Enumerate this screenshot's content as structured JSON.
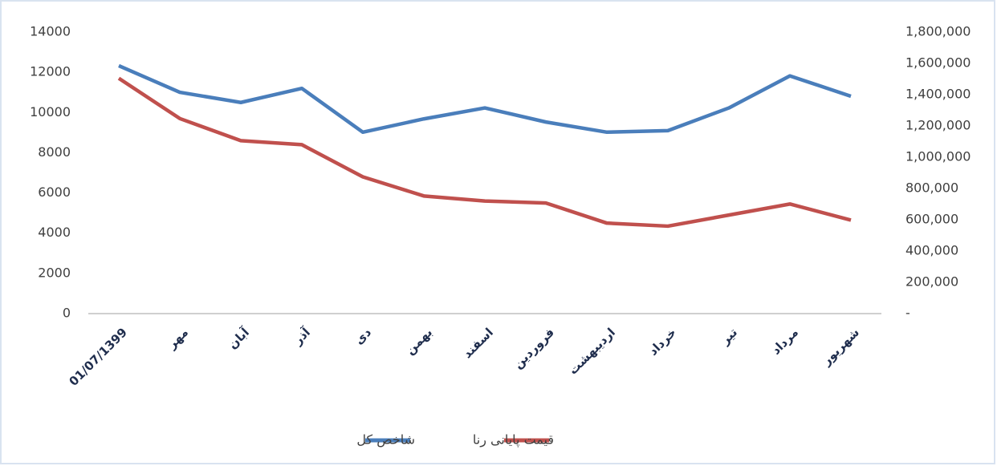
{
  "chart_data": {
    "type": "line",
    "categories": [
      "01/07/1399",
      "مهر",
      "آبان",
      "آذر",
      "دی",
      "بهمن",
      "اسفند",
      "فروردین",
      "اردیبهشت",
      "خرداد",
      "تیر",
      "مرداد",
      "شهریور"
    ],
    "series": [
      {
        "name": "شاخص کل",
        "color": "#4a7ebb",
        "axis": "y2",
        "values": [
          1585000,
          1415000,
          1350000,
          1440000,
          1160000,
          1245000,
          1315000,
          1225000,
          1160000,
          1170000,
          1315000,
          1520000,
          1390000
        ]
      },
      {
        "name": "قیمت پایانی رنا",
        "color": "#c0504d",
        "axis": "y",
        "values": [
          11700,
          9700,
          8600,
          8400,
          6800,
          5850,
          5600,
          5500,
          4500,
          4350,
          4900,
          5450,
          4650
        ]
      }
    ],
    "ylim": [
      0,
      14000
    ],
    "yticks": [
      0,
      2000,
      4000,
      6000,
      8000,
      10000,
      12000,
      14000
    ],
    "y2lim": [
      0,
      1800000
    ],
    "y2ticks": [
      {
        "value": 0,
        "label": "-"
      },
      {
        "value": 200000,
        "label": "200,000"
      },
      {
        "value": 400000,
        "label": "400,000"
      },
      {
        "value": 600000,
        "label": "600,000"
      },
      {
        "value": 800000,
        "label": "800,000"
      },
      {
        "value": 1000000,
        "label": "1,000,000"
      },
      {
        "value": 1200000,
        "label": "1,200,000"
      },
      {
        "value": 1400000,
        "label": "1,400,000"
      },
      {
        "value": 1600000,
        "label": "1,600,000"
      },
      {
        "value": 1800000,
        "label": "1,800,000"
      }
    ],
    "legend": "bottom",
    "grid": false
  }
}
